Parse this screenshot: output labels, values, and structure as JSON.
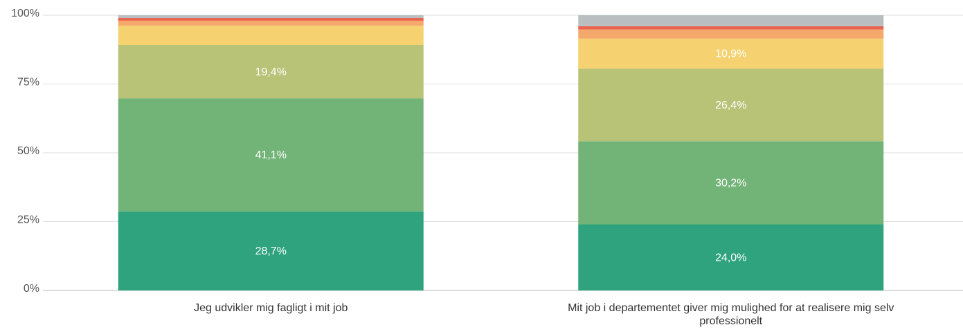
{
  "chart_data": {
    "type": "stacked_bar",
    "categories": [
      "Jeg udvikler mig fagligt i mit job",
      "Mit job i departementet giver mig mulighed for at realisere mig selv professionelt"
    ],
    "series": [
      {
        "color": "#2ea37d",
        "values": [
          28.7,
          24.0
        ],
        "value_labels": [
          "28,7%",
          "24,0%"
        ]
      },
      {
        "color": "#72b377",
        "values": [
          41.1,
          30.2
        ],
        "value_labels": [
          "41,1%",
          "30,2%"
        ]
      },
      {
        "color": "#b8c377",
        "values": [
          19.4,
          26.4
        ],
        "value_labels": [
          "19,4%",
          "26,4%"
        ]
      },
      {
        "color": "#f5d16f",
        "values": [
          7.0,
          10.9
        ],
        "value_labels": [
          null,
          "10,9%"
        ]
      },
      {
        "color": "#f4a86c",
        "values": [
          1.8,
          3.3
        ],
        "value_labels": [
          null,
          null
        ]
      },
      {
        "color": "#e8654f",
        "values": [
          1.0,
          1.2
        ],
        "value_labels": [
          null,
          null
        ]
      },
      {
        "color": "#b9bfc1",
        "values": [
          1.0,
          4.0
        ],
        "value_labels": [
          null,
          null
        ]
      }
    ],
    "ylim": [
      0,
      100
    ],
    "yticks": [
      {
        "value": 0,
        "label": "0%"
      },
      {
        "value": 25,
        "label": "25%"
      },
      {
        "value": 50,
        "label": "50%"
      },
      {
        "value": 75,
        "label": "75%"
      },
      {
        "value": 100,
        "label": "100%"
      }
    ],
    "grid": true
  }
}
